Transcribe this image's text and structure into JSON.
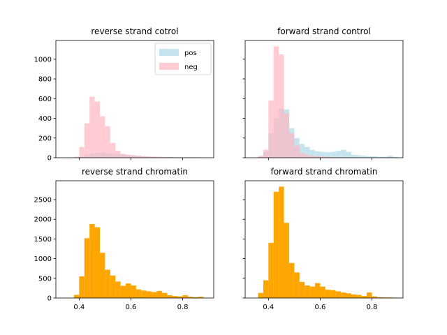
{
  "chart_data": [
    {
      "type": "bar",
      "title": "reverse strand cotrol",
      "xlim": [
        0.31,
        0.92
      ],
      "ylim": [
        0,
        1190
      ],
      "yticks": [
        0,
        200,
        400,
        600,
        800,
        1000
      ],
      "show_yticklabels": true,
      "xticks": [
        0.4,
        0.6,
        0.8
      ],
      "show_xticklabels": false,
      "legend": {
        "placement": "top-right",
        "entries": [
          "pos",
          "neg"
        ]
      },
      "series": [
        {
          "name": "pos",
          "color": "#add8e6",
          "opacity": 0.7,
          "bins": [
            [
              0.38,
              0.4,
              5
            ],
            [
              0.4,
              0.42,
              10
            ],
            [
              0.42,
              0.44,
              30
            ],
            [
              0.44,
              0.46,
              40
            ],
            [
              0.46,
              0.48,
              50
            ],
            [
              0.48,
              0.5,
              55
            ],
            [
              0.5,
              0.52,
              45
            ],
            [
              0.52,
              0.54,
              40
            ],
            [
              0.54,
              0.56,
              35
            ],
            [
              0.56,
              0.58,
              30
            ],
            [
              0.58,
              0.6,
              30
            ],
            [
              0.6,
              0.62,
              25
            ],
            [
              0.62,
              0.64,
              20
            ],
            [
              0.64,
              0.66,
              15
            ],
            [
              0.66,
              0.68,
              12
            ],
            [
              0.68,
              0.7,
              10
            ],
            [
              0.7,
              0.72,
              8
            ],
            [
              0.72,
              0.74,
              6
            ],
            [
              0.74,
              0.76,
              5
            ],
            [
              0.76,
              0.78,
              4
            ],
            [
              0.78,
              0.8,
              3
            ],
            [
              0.8,
              0.82,
              3
            ],
            [
              0.82,
              0.84,
              2
            ],
            [
              0.84,
              0.86,
              2
            ],
            [
              0.86,
              0.88,
              2
            ]
          ]
        },
        {
          "name": "neg",
          "color": "#ffb6c1",
          "opacity": 0.7,
          "bins": [
            [
              0.38,
              0.4,
              10
            ],
            [
              0.4,
              0.42,
              110
            ],
            [
              0.42,
              0.44,
              350
            ],
            [
              0.44,
              0.46,
              620
            ],
            [
              0.46,
              0.48,
              570
            ],
            [
              0.48,
              0.5,
              420
            ],
            [
              0.5,
              0.52,
              320
            ],
            [
              0.52,
              0.54,
              150
            ],
            [
              0.54,
              0.56,
              70
            ],
            [
              0.56,
              0.58,
              40
            ],
            [
              0.58,
              0.6,
              30
            ],
            [
              0.6,
              0.62,
              25
            ],
            [
              0.62,
              0.64,
              20
            ],
            [
              0.64,
              0.66,
              15
            ],
            [
              0.66,
              0.68,
              12
            ],
            [
              0.68,
              0.7,
              10
            ],
            [
              0.7,
              0.72,
              10
            ],
            [
              0.72,
              0.74,
              8
            ],
            [
              0.74,
              0.76,
              6
            ],
            [
              0.76,
              0.78,
              5
            ],
            [
              0.78,
              0.8,
              4
            ],
            [
              0.8,
              0.82,
              3
            ],
            [
              0.82,
              0.84,
              3
            ],
            [
              0.84,
              0.86,
              2
            ],
            [
              0.86,
              0.88,
              2
            ]
          ]
        }
      ]
    },
    {
      "type": "bar",
      "title": "forward strand control",
      "xlim": [
        0.31,
        0.92
      ],
      "ylim": [
        0,
        1190
      ],
      "yticks": [
        0,
        200,
        400,
        600,
        800,
        1000
      ],
      "show_yticklabels": false,
      "xticks": [
        0.4,
        0.6,
        0.8
      ],
      "show_xticklabels": false,
      "series": [
        {
          "name": "pos",
          "color": "#add8e6",
          "opacity": 0.7,
          "bins": [
            [
              0.36,
              0.38,
              10
            ],
            [
              0.38,
              0.4,
              60
            ],
            [
              0.4,
              0.42,
              250
            ],
            [
              0.42,
              0.44,
              400
            ],
            [
              0.44,
              0.46,
              500
            ],
            [
              0.46,
              0.48,
              490
            ],
            [
              0.48,
              0.5,
              300
            ],
            [
              0.5,
              0.52,
              200
            ],
            [
              0.52,
              0.54,
              140
            ],
            [
              0.54,
              0.56,
              110
            ],
            [
              0.56,
              0.58,
              80
            ],
            [
              0.58,
              0.6,
              65
            ],
            [
              0.6,
              0.62,
              60
            ],
            [
              0.62,
              0.64,
              55
            ],
            [
              0.64,
              0.66,
              60
            ],
            [
              0.66,
              0.68,
              70
            ],
            [
              0.68,
              0.7,
              80
            ],
            [
              0.7,
              0.72,
              60
            ],
            [
              0.72,
              0.74,
              30
            ],
            [
              0.74,
              0.76,
              25
            ],
            [
              0.76,
              0.78,
              20
            ],
            [
              0.78,
              0.8,
              15
            ],
            [
              0.8,
              0.82,
              15
            ],
            [
              0.82,
              0.84,
              10
            ],
            [
              0.84,
              0.86,
              10
            ],
            [
              0.86,
              0.88,
              20
            ],
            [
              0.88,
              0.9,
              10
            ]
          ]
        },
        {
          "name": "neg",
          "color": "#ffb6c1",
          "opacity": 0.7,
          "bins": [
            [
              0.36,
              0.38,
              20
            ],
            [
              0.38,
              0.4,
              80
            ],
            [
              0.4,
              0.42,
              580
            ],
            [
              0.42,
              0.44,
              1130
            ],
            [
              0.44,
              0.46,
              1050
            ],
            [
              0.46,
              0.48,
              450
            ],
            [
              0.48,
              0.5,
              250
            ],
            [
              0.5,
              0.52,
              120
            ],
            [
              0.52,
              0.54,
              50
            ],
            [
              0.54,
              0.56,
              30
            ],
            [
              0.56,
              0.58,
              20
            ],
            [
              0.58,
              0.6,
              15
            ],
            [
              0.6,
              0.62,
              10
            ],
            [
              0.62,
              0.64,
              8
            ],
            [
              0.64,
              0.66,
              6
            ],
            [
              0.66,
              0.68,
              5
            ],
            [
              0.68,
              0.7,
              4
            ],
            [
              0.7,
              0.72,
              3
            ],
            [
              0.72,
              0.74,
              3
            ]
          ]
        }
      ]
    },
    {
      "type": "bar",
      "title": "reverse strand chromatin",
      "xlim": [
        0.31,
        0.92
      ],
      "ylim": [
        0,
        2980
      ],
      "yticks": [
        0,
        500,
        1000,
        1500,
        2000,
        2500
      ],
      "show_yticklabels": true,
      "xticks": [
        0.4,
        0.6,
        0.8
      ],
      "show_xticklabels": true,
      "series": [
        {
          "name": "",
          "color": "#ffa500",
          "opacity": 1,
          "bins": [
            [
              0.38,
              0.4,
              80
            ],
            [
              0.4,
              0.42,
              550
            ],
            [
              0.42,
              0.44,
              1520
            ],
            [
              0.44,
              0.46,
              1880
            ],
            [
              0.46,
              0.48,
              1800
            ],
            [
              0.48,
              0.5,
              1150
            ],
            [
              0.5,
              0.52,
              720
            ],
            [
              0.52,
              0.54,
              570
            ],
            [
              0.54,
              0.56,
              420
            ],
            [
              0.56,
              0.58,
              310
            ],
            [
              0.58,
              0.6,
              370
            ],
            [
              0.6,
              0.62,
              320
            ],
            [
              0.62,
              0.64,
              220
            ],
            [
              0.64,
              0.66,
              190
            ],
            [
              0.66,
              0.68,
              170
            ],
            [
              0.68,
              0.7,
              150
            ],
            [
              0.7,
              0.72,
              180
            ],
            [
              0.72,
              0.74,
              130
            ],
            [
              0.74,
              0.76,
              70
            ],
            [
              0.76,
              0.78,
              50
            ],
            [
              0.78,
              0.8,
              40
            ],
            [
              0.8,
              0.82,
              70
            ],
            [
              0.82,
              0.84,
              30
            ],
            [
              0.84,
              0.86,
              20
            ],
            [
              0.86,
              0.88,
              30
            ]
          ]
        }
      ]
    },
    {
      "type": "bar",
      "title": "forward strand chromatin",
      "xlim": [
        0.31,
        0.92
      ],
      "ylim": [
        0,
        2980
      ],
      "yticks": [
        0,
        500,
        1000,
        1500,
        2000,
        2500
      ],
      "show_yticklabels": false,
      "xticks": [
        0.4,
        0.6,
        0.8
      ],
      "show_xticklabels": true,
      "series": [
        {
          "name": "",
          "color": "#ffa500",
          "opacity": 1,
          "bins": [
            [
              0.36,
              0.38,
              130
            ],
            [
              0.38,
              0.4,
              450
            ],
            [
              0.4,
              0.42,
              1400
            ],
            [
              0.42,
              0.44,
              2700
            ],
            [
              0.44,
              0.46,
              2830
            ],
            [
              0.46,
              0.48,
              1910
            ],
            [
              0.48,
              0.5,
              890
            ],
            [
              0.5,
              0.52,
              650
            ],
            [
              0.52,
              0.54,
              410
            ],
            [
              0.54,
              0.56,
              320
            ],
            [
              0.56,
              0.58,
              290
            ],
            [
              0.58,
              0.6,
              380
            ],
            [
              0.6,
              0.62,
              290
            ],
            [
              0.62,
              0.64,
              210
            ],
            [
              0.64,
              0.66,
              200
            ],
            [
              0.66,
              0.68,
              170
            ],
            [
              0.68,
              0.7,
              140
            ],
            [
              0.7,
              0.72,
              120
            ],
            [
              0.72,
              0.74,
              90
            ],
            [
              0.74,
              0.76,
              80
            ],
            [
              0.76,
              0.78,
              50
            ],
            [
              0.78,
              0.8,
              140
            ],
            [
              0.8,
              0.82,
              40
            ],
            [
              0.82,
              0.84,
              20
            ],
            [
              0.84,
              0.86,
              15
            ],
            [
              0.86,
              0.88,
              15
            ],
            [
              0.88,
              0.9,
              10
            ]
          ]
        }
      ]
    }
  ]
}
